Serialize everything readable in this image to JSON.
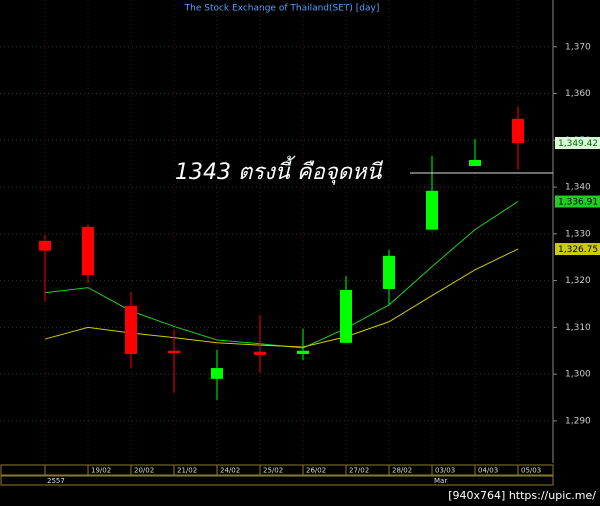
{
  "chart_data": {
    "type": "candlestick",
    "title": "The Stock Exchange of Thailand(SET) [day]",
    "categories": [
      null,
      "19/02",
      "20/02",
      "21/02",
      "24/02",
      "25/02",
      "26/02",
      "27/02",
      "28/02",
      "03/03",
      "04/03",
      "05/03"
    ],
    "secondary_categories": [
      "2557",
      null,
      null,
      null,
      null,
      null,
      null,
      null,
      null,
      "Mar",
      null,
      null
    ],
    "open": [
      1328.5,
      1331.5,
      1314.6,
      1305.0,
      1299.0,
      1304.8,
      1304.3,
      1306.7,
      1318.2,
      1330.9,
      1344.5,
      1354.6
    ],
    "high": [
      1329.8,
      1332.0,
      1317.6,
      1309.5,
      1305.2,
      1312.7,
      1309.7,
      1321.0,
      1326.6,
      1346.7,
      1350.3,
      1357.2
    ],
    "low": [
      1315.5,
      1319.5,
      1301.3,
      1296.0,
      1294.5,
      1300.3,
      1303.0,
      1306.7,
      1314.8,
      1330.9,
      1344.5,
      1343.7
    ],
    "close": [
      1326.4,
      1321.2,
      1304.3,
      1304.5,
      1301.3,
      1304.1,
      1305.0,
      1318.0,
      1325.3,
      1339.2,
      1345.8,
      1349.42
    ],
    "close_value_labels": [
      null,
      null,
      null,
      null,
      null,
      null,
      null,
      null,
      null,
      null,
      null,
      "1,349.42"
    ],
    "up_color": "#00ff00",
    "down_color": "#ff0000",
    "close_tag_color": "#d8f8d8",
    "series": [
      {
        "color": "#22cc22",
        "values": [
          1317.4,
          1318.5,
          1313.5,
          1310.2,
          1307.3,
          1306.5,
          1305.6,
          1309.8,
          1314.8,
          1323.0,
          1330.9,
          1336.91
        ],
        "value_labels": [
          null,
          null,
          null,
          null,
          null,
          null,
          null,
          null,
          null,
          null,
          null,
          "1,336.91"
        ]
      },
      {
        "color": "#cccc00",
        "values": [
          1307.5,
          1310.0,
          1308.8,
          1307.8,
          1306.7,
          1306.2,
          1305.8,
          1308.0,
          1311.2,
          1316.8,
          1322.3,
          1326.75
        ],
        "value_labels": [
          null,
          null,
          null,
          null,
          null,
          null,
          null,
          null,
          null,
          null,
          null,
          "1,326.75"
        ]
      }
    ],
    "ylim": [
      1281,
      1380
    ],
    "yticks": [
      {
        "value": 1290,
        "label": "1,290"
      },
      {
        "value": 1300,
        "label": "1,300"
      },
      {
        "value": 1310,
        "label": "1,310"
      },
      {
        "value": 1320,
        "label": "1,320"
      },
      {
        "value": 1330,
        "label": "1,330"
      },
      {
        "value": 1340,
        "label": "1,340"
      },
      {
        "value": 1350,
        "label": "1,350"
      },
      {
        "value": 1360,
        "label": "1,360"
      },
      {
        "value": 1370,
        "label": "1,370"
      }
    ],
    "grid": true,
    "annotation": {
      "text": "1343 ตรงนี้ คือจุดหนี",
      "value": 1343
    },
    "footer": "[940x764] https://upic.me/"
  }
}
